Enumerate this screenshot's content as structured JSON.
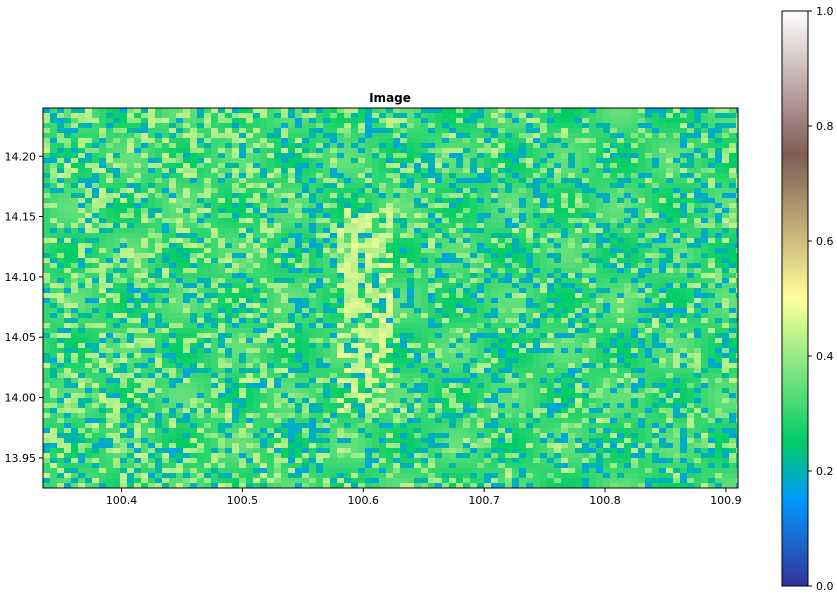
{
  "chart_data": {
    "type": "heatmap",
    "title": "Image",
    "xlabel": "",
    "ylabel": "",
    "xlim": [
      100.335,
      100.91
    ],
    "ylim": [
      13.925,
      14.24
    ],
    "x_ticks": [
      "100.4",
      "100.5",
      "100.6",
      "100.7",
      "100.8",
      "100.9"
    ],
    "x_tick_values": [
      100.4,
      100.5,
      100.6,
      100.7,
      100.8,
      100.9
    ],
    "y_ticks": [
      "13.95",
      "14.00",
      "14.05",
      "14.10",
      "14.15",
      "14.20"
    ],
    "y_tick_values": [
      13.95,
      14.0,
      14.05,
      14.1,
      14.15,
      14.2
    ],
    "colorbar": {
      "colormap": "terrain",
      "range": [
        0.0,
        1.0
      ],
      "ticks": [
        "0.0",
        "0.2",
        "0.4",
        "0.6",
        "0.8",
        "1.0"
      ],
      "tick_values": [
        0.0,
        0.2,
        0.4,
        0.6,
        0.8,
        1.0
      ],
      "stops": [
        {
          "v": 0.0,
          "color": "#333399"
        },
        {
          "v": 0.15,
          "color": "#0099ff"
        },
        {
          "v": 0.25,
          "color": "#00cc66"
        },
        {
          "v": 0.5,
          "color": "#ffff99"
        },
        {
          "v": 0.75,
          "color": "#805c55"
        },
        {
          "v": 1.0,
          "color": "#ffffff"
        }
      ]
    },
    "grid": false
  }
}
